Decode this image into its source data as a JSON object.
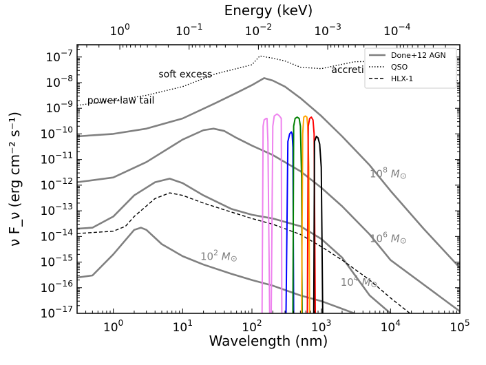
{
  "chart_data": {
    "type": "line",
    "title": "",
    "xlabel": "Wavelength (nm)",
    "ylabel": "ν F_ν (erg cm⁻² s⁻¹)",
    "top_xlabel": "Energy (keV)",
    "xscale": "log",
    "yscale": "log",
    "xlim": [
      0.3,
      100000
    ],
    "ylim": [
      1e-17,
      3e-07
    ],
    "x_ticks": [
      {
        "value": 1,
        "base": "10",
        "exp": "0"
      },
      {
        "value": 10,
        "base": "10",
        "exp": "1"
      },
      {
        "value": 100,
        "base": "10",
        "exp": "2"
      },
      {
        "value": 1000,
        "base": "10",
        "exp": "3"
      },
      {
        "value": 10000,
        "base": "10",
        "exp": "4"
      },
      {
        "value": 100000,
        "base": "10",
        "exp": "5"
      }
    ],
    "y_ticks": [
      {
        "value": 1e-17,
        "base": "10",
        "exp": "−17"
      },
      {
        "value": 1e-16,
        "base": "10",
        "exp": "−16"
      },
      {
        "value": 1e-15,
        "base": "10",
        "exp": "−15"
      },
      {
        "value": 1e-14,
        "base": "10",
        "exp": "−14"
      },
      {
        "value": 1e-13,
        "base": "10",
        "exp": "−13"
      },
      {
        "value": 1e-12,
        "base": "10",
        "exp": "−12"
      },
      {
        "value": 1e-11,
        "base": "10",
        "exp": "−11"
      },
      {
        "value": 1e-10,
        "base": "10",
        "exp": "−10"
      },
      {
        "value": 1e-09,
        "base": "10",
        "exp": "−9"
      },
      {
        "value": 1e-08,
        "base": "10",
        "exp": "−8"
      },
      {
        "value": 1e-07,
        "base": "10",
        "exp": "−7"
      }
    ],
    "top_ticks": [
      {
        "wavelength_nm": 1.24,
        "base": "10",
        "exp": "0"
      },
      {
        "wavelength_nm": 12.4,
        "base": "10",
        "exp": "−1"
      },
      {
        "wavelength_nm": 124,
        "base": "10",
        "exp": "−2"
      },
      {
        "wavelength_nm": 1240,
        "base": "10",
        "exp": "−3"
      },
      {
        "wavelength_nm": 12400,
        "base": "10",
        "exp": "−4"
      }
    ],
    "legend": {
      "position": "top-right",
      "entries": [
        {
          "label": "Done+12 AGN",
          "style": "solid-gray"
        },
        {
          "label": "QSO",
          "style": "dotted"
        },
        {
          "label": "HLX-1",
          "style": "dashed"
        }
      ]
    },
    "annotations": [
      {
        "text": "soft excess",
        "x": 4.5,
        "y": 1.6e-08
      },
      {
        "text": "accretion disk",
        "x": 1400,
        "y": 2.4e-08
      },
      {
        "text": "power-law tail",
        "x": 0.42,
        "y": 1.5e-09
      }
    ],
    "mass_labels": [
      {
        "prefix": "10",
        "exp": "8",
        "unit": "M",
        "x": 5000,
        "y": 2e-12
      },
      {
        "prefix": "10",
        "exp": "6",
        "unit": "M",
        "x": 5000,
        "y": 6e-15
      },
      {
        "prefix": "10",
        "exp": "4",
        "unit": "M",
        "x": 1900,
        "y": 1.2e-16
      },
      {
        "prefix": "10",
        "exp": "2",
        "unit": "M",
        "x": 18,
        "y": 1.2e-15
      }
    ],
    "series": [
      {
        "name": "Done+12 AGN 10^8 M_sun",
        "color": "#808080",
        "style": "solid",
        "x": [
          0.3,
          1,
          3,
          10,
          30,
          60,
          100,
          150,
          200,
          300,
          500,
          1000,
          2000,
          5000,
          10000,
          30000,
          100000
        ],
        "y": [
          8e-11,
          1e-10,
          1.6e-10,
          4e-10,
          1.6e-09,
          4e-09,
          8e-09,
          1.5e-08,
          1.2e-08,
          7e-09,
          2.5e-09,
          5e-10,
          8e-11,
          6e-12,
          6e-13,
          2e-14,
          6e-16
        ]
      },
      {
        "name": "Done+12 AGN 10^6 M_sun",
        "color": "#808080",
        "style": "solid",
        "x": [
          0.3,
          1,
          3,
          10,
          20,
          28,
          40,
          60,
          100,
          200,
          500,
          1000,
          2000,
          5000,
          10000,
          100000
        ],
        "y": [
          1.3e-12,
          2e-12,
          8e-12,
          6e-11,
          1.4e-10,
          1.6e-10,
          1.3e-10,
          7e-11,
          3.5e-11,
          1.5e-11,
          3.5e-12,
          8e-13,
          1.5e-13,
          1.2e-14,
          1.2e-15,
          1.2e-17
        ]
      },
      {
        "name": "Done+12 AGN 10^4 M_sun",
        "color": "#808080",
        "style": "solid",
        "x": [
          0.3,
          0.5,
          1,
          2,
          4,
          6.5,
          10,
          20,
          50,
          100,
          200,
          500,
          1000,
          2000,
          5000,
          10000
        ],
        "y": [
          2e-14,
          2.2e-14,
          6e-14,
          4e-13,
          1.3e-12,
          1.8e-12,
          1.2e-12,
          4e-13,
          1.2e-13,
          7e-14,
          5e-14,
          2.5e-14,
          8e-15,
          1.5e-15,
          5e-17,
          1e-17
        ]
      },
      {
        "name": "Done+12 AGN 10^2 M_sun",
        "color": "#808080",
        "style": "solid",
        "x": [
          0.3,
          0.5,
          1,
          2,
          2.5,
          3,
          5,
          10,
          20,
          50,
          100,
          200,
          500,
          1000,
          2000,
          3000
        ],
        "y": [
          2.5e-16,
          3e-16,
          2e-15,
          1.8e-14,
          2.2e-14,
          1.8e-14,
          5e-15,
          1.7e-15,
          8e-16,
          3.5e-16,
          2e-16,
          1.2e-16,
          5e-17,
          3e-17,
          1.5e-17,
          1e-17
        ]
      },
      {
        "name": "QSO",
        "color": "#000000",
        "style": "dotted",
        "x": [
          0.3,
          1,
          3,
          10,
          30,
          60,
          100,
          130,
          200,
          300,
          500,
          1000,
          3000,
          10000,
          30000,
          60000,
          100000
        ],
        "y": [
          1.3e-09,
          2e-09,
          3.2e-09,
          7e-09,
          2.2e-08,
          3.5e-08,
          5e-08,
          1.1e-07,
          9e-08,
          7e-08,
          4e-08,
          3.5e-08,
          6.5e-08,
          7e-08,
          6e-08,
          3e-08,
          1e-08
        ]
      },
      {
        "name": "HLX-1",
        "color": "#000000",
        "style": "dashed",
        "x": [
          0.3,
          1,
          1.5,
          2,
          4,
          6.5,
          10,
          20,
          50,
          100,
          200,
          500,
          1000,
          2000,
          5000,
          10000,
          20000
        ],
        "y": [
          1.3e-14,
          1.6e-14,
          2.5e-14,
          6e-14,
          3e-13,
          5e-13,
          4e-13,
          2e-13,
          9e-14,
          5e-14,
          3e-14,
          1.2e-14,
          4e-15,
          1.2e-15,
          2e-16,
          4e-17,
          7e-18
        ]
      },
      {
        "name": "filter-violet",
        "color": "#ee82ee",
        "style": "solid",
        "x": [
          140,
          145,
          150,
          160,
          165,
          170,
          180,
          190,
          200,
          210,
          230,
          250,
          265,
          270
        ],
        "y": [
          1e-17,
          2e-10,
          3.5e-10,
          4e-10,
          4e-10,
          5e-11,
          1e-17,
          1e-17,
          2e-10,
          5e-10,
          6e-10,
          5e-10,
          4e-10,
          1e-17
        ]
      },
      {
        "name": "filter-blue",
        "color": "#0000ff",
        "style": "solid",
        "x": [
          310,
          330,
          350,
          370,
          380,
          390,
          400
        ],
        "y": [
          1e-17,
          5e-11,
          1e-10,
          1.2e-10,
          1e-10,
          3e-11,
          1e-17
        ]
      },
      {
        "name": "filter-green",
        "color": "#008000",
        "style": "solid",
        "x": [
          390,
          400,
          420,
          450,
          480,
          500,
          520,
          530
        ],
        "y": [
          1e-17,
          2e-10,
          4e-10,
          4.5e-10,
          4e-10,
          2e-10,
          2e-12,
          1e-17
        ]
      },
      {
        "name": "filter-orange",
        "color": "#ffa500",
        "style": "solid",
        "x": [
          520,
          540,
          560,
          590,
          620,
          640,
          660,
          680
        ],
        "y": [
          1e-17,
          1e-10,
          4.5e-10,
          5e-10,
          4.5e-10,
          2e-10,
          5e-12,
          1e-17
        ]
      },
      {
        "name": "filter-red",
        "color": "#ff0000",
        "style": "solid",
        "x": [
          630,
          650,
          680,
          720,
          760,
          790,
          820
        ],
        "y": [
          1e-17,
          2e-10,
          4e-10,
          4.5e-10,
          3.5e-10,
          1e-10,
          1e-17
        ]
      },
      {
        "name": "filter-black",
        "color": "#000000",
        "style": "solid",
        "x": [
          780,
          800,
          850,
          900,
          950,
          1000,
          1050
        ],
        "y": [
          1e-17,
          5e-11,
          8e-11,
          7e-11,
          4e-11,
          5e-12,
          1e-17
        ]
      }
    ]
  }
}
